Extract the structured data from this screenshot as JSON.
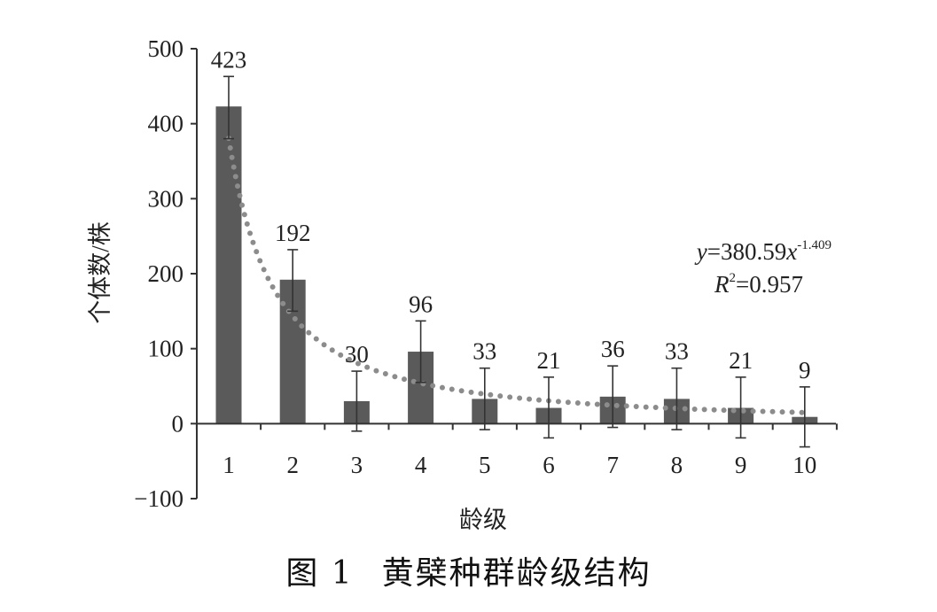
{
  "chart_data": {
    "type": "bar",
    "categories": [
      "1",
      "2",
      "3",
      "4",
      "5",
      "6",
      "7",
      "8",
      "9",
      "10"
    ],
    "values": [
      423,
      192,
      30,
      96,
      33,
      21,
      36,
      33,
      21,
      9
    ],
    "data_labels": [
      "423",
      "192",
      "30",
      "96",
      "33",
      "21",
      "36",
      "33",
      "21",
      "9"
    ],
    "error_bars": [
      {
        "low": 380,
        "high": 463
      },
      {
        "low": 150,
        "high": 232
      },
      {
        "low": -10,
        "high": 70
      },
      {
        "low": 55,
        "high": 137
      },
      {
        "low": -8,
        "high": 74
      },
      {
        "low": -19,
        "high": 62
      },
      {
        "low": -5,
        "high": 77
      },
      {
        "low": -8,
        "high": 74
      },
      {
        "low": -19,
        "high": 62
      },
      {
        "low": -31,
        "high": 49
      }
    ],
    "trendline": {
      "type": "power",
      "a": 380.59,
      "b": -1.409,
      "style": "dotted"
    },
    "equation_text": {
      "y_prefix": "y",
      "eq_mid": "=380.59",
      "x_var": "x",
      "exponent": "-1.409",
      "r_prefix": "R",
      "r_sup": "2",
      "r_value": "=0.957"
    },
    "ylabel": "个体数/株",
    "xlabel": "龄级",
    "ylim": [
      -100,
      500
    ],
    "yticks": [
      500,
      400,
      300,
      200,
      100,
      0,
      -100
    ],
    "ytick_labels": [
      "500",
      "400",
      "300",
      "200",
      "100",
      "0",
      "−100"
    ],
    "grid": false,
    "legend": "none",
    "bar_color": "#5a5a5a",
    "trend_color": "#8c8c8c"
  },
  "caption": {
    "number": "图 1",
    "title": "黄檗种群龄级结构"
  }
}
